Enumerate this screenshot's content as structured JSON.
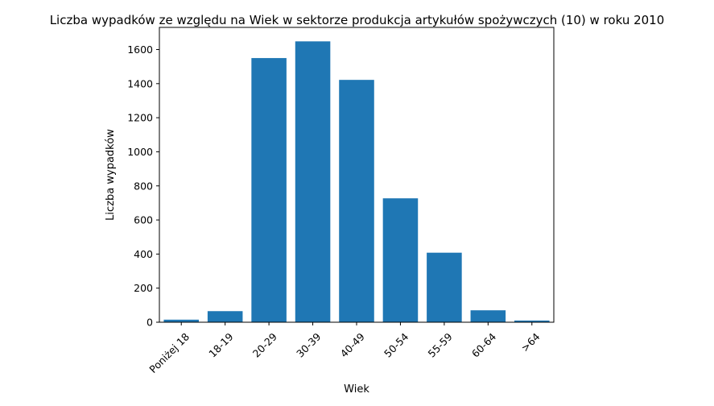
{
  "chart_data": {
    "type": "bar",
    "title": "Liczba wypadków ze względu na Wiek w sektorze produkcja artykułów spożywczych  (10)   w roku 2010",
    "xlabel": "Wiek",
    "ylabel": "Liczba wypadków",
    "categories": [
      "Poniżej 18",
      "18-19",
      "20-29",
      "30-39",
      "40-49",
      "50-54",
      "55-59",
      "60-64",
      ">64"
    ],
    "values": [
      15,
      65,
      1550,
      1648,
      1422,
      727,
      408,
      70,
      10
    ],
    "ylim": [
      0,
      1730
    ],
    "yticks": [
      0,
      200,
      400,
      600,
      800,
      1000,
      1200,
      1400,
      1600
    ],
    "bar_color": "#1f77b4",
    "grid": false,
    "legend": "none"
  }
}
